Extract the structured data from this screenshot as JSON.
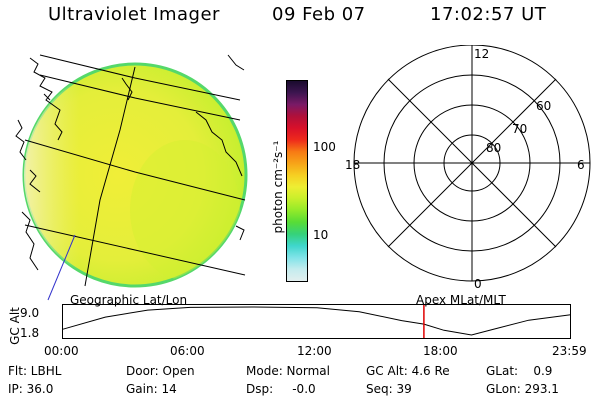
{
  "header": {
    "instrument": "Ultraviolet Imager",
    "date": "09 Feb 07",
    "time": "17:02:57 UT"
  },
  "colorbar": {
    "unit_label": "photon cm⁻²s⁻¹",
    "ticks": [
      "100",
      "10"
    ],
    "colors": [
      "#1a0b2e",
      "#3d1550",
      "#7a1a66",
      "#b0103a",
      "#d8102a",
      "#ee2a1c",
      "#f77a14",
      "#f7a418",
      "#f6cf22",
      "#eeee33",
      "#c8ef2b",
      "#93ea2a",
      "#58dc36",
      "#35d27a",
      "#3fd6cc",
      "#7fe3e8",
      "#c4ecee",
      "#e2eeee"
    ]
  },
  "polar_plot": {
    "mlt_labels": {
      "top": "12",
      "bottom": "0",
      "left": "18",
      "right": "6"
    },
    "mlat_labels": [
      "60",
      "70",
      "80"
    ]
  },
  "labels": {
    "geo_grid": "Geographic Lat/Lon",
    "apex_grid": "Apex MLat/MLT"
  },
  "orbit": {
    "ylabel": "GC Alt",
    "y_ticks": [
      "9.0",
      "1.8"
    ],
    "x_ticks": [
      "00:00",
      "06:00",
      "12:00",
      "18:00",
      "23:59"
    ],
    "marker_time_hours": 17.05,
    "altitude_curve_re": [
      [
        0.0,
        3.3
      ],
      [
        2.0,
        6.4
      ],
      [
        4.0,
        8.2
      ],
      [
        6.0,
        8.9
      ],
      [
        9.0,
        9.0
      ],
      [
        12.0,
        8.8
      ],
      [
        14.0,
        7.8
      ],
      [
        16.0,
        5.5
      ],
      [
        17.05,
        4.6
      ],
      [
        18.0,
        3.0
      ],
      [
        19.3,
        1.8
      ],
      [
        20.5,
        3.5
      ],
      [
        22.0,
        5.6
      ],
      [
        23.98,
        7.0
      ]
    ]
  },
  "status": {
    "flt": "Flt: LBHL",
    "ip": "IP: 36.0",
    "door": "Door: Open",
    "gain": "Gain: 14",
    "mode": "Mode: Normal",
    "dsp": "Dsp:     -0.0",
    "gc_alt": "GC Alt: 4.6 Re",
    "seq": "Seq: 39",
    "glat": "GLat:    0.9",
    "glon": "GLon: 293.1"
  }
}
